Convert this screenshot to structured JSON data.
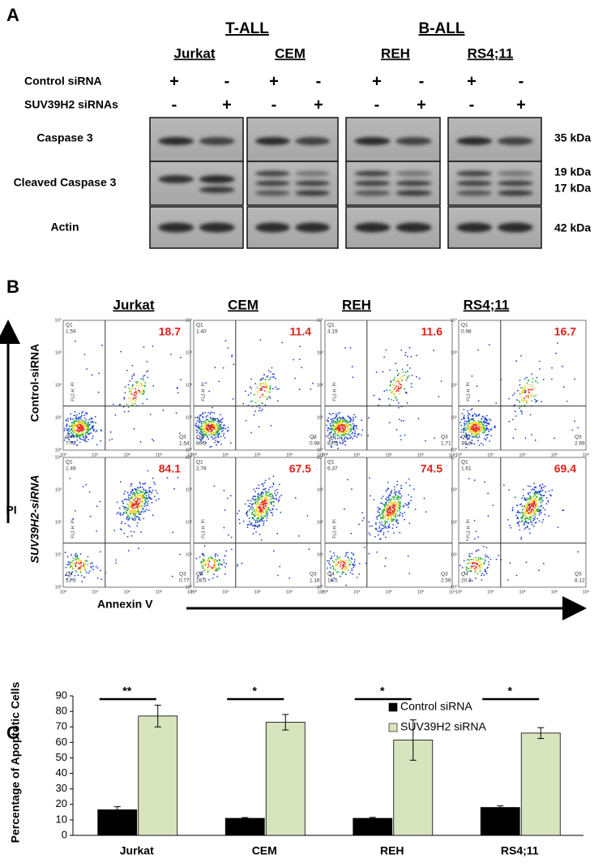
{
  "panel_a": {
    "label": "A",
    "groups": [
      {
        "name": "T-ALL",
        "lines": [
          "Jurkat",
          "CEM"
        ]
      },
      {
        "name": "B-ALL",
        "lines": [
          "REH",
          "RS4;11"
        ]
      }
    ],
    "treatments": [
      {
        "label": "Control siRNA",
        "signs": [
          "+",
          "-",
          "+",
          "-",
          "+",
          "-",
          "+",
          "-"
        ]
      },
      {
        "label": "SUV39H2 siRNAs",
        "signs": [
          "-",
          "+",
          "-",
          "+",
          "-",
          "+",
          "-",
          "+"
        ]
      }
    ],
    "blots": [
      {
        "label": "Caspase 3",
        "sizes": [
          "35 kDa"
        ]
      },
      {
        "label": "Cleaved Caspase 3",
        "sizes": [
          "19 kDa",
          "17 kDa"
        ]
      },
      {
        "label": "Actin",
        "sizes": [
          "42 kDa"
        ]
      }
    ]
  },
  "panel_b": {
    "label": "B",
    "cell_lines": [
      "Jurkat",
      "CEM",
      "REH",
      "RS4;11"
    ],
    "y_axis": "PI",
    "x_axis": "Annexin V",
    "channel": "FL2-H: PI",
    "quadrant_names": [
      "Q1",
      "Q3",
      "Q4"
    ],
    "log_ticks": [
      "10⁰",
      "10¹",
      "10²",
      "10³",
      "10⁴"
    ],
    "conditions": [
      {
        "label": "Control-siRNA",
        "plots": [
          {
            "q2": "18.7",
            "q1": "1.59",
            "q3": "1.54",
            "q4": "77.8"
          },
          {
            "q2": "11.4",
            "q1": "1.40",
            "q3": "0.98",
            "q4": "86.2"
          },
          {
            "q2": "11.6",
            "q1": "3.19",
            "q3": "1.71",
            "q4": "83.5"
          },
          {
            "q2": "16.7",
            "q1": "0.98",
            "q3": "2.69",
            "q4": "79.6"
          }
        ]
      },
      {
        "label": "SUV39H2-siRNA",
        "plots": [
          {
            "q2": "84.1",
            "q1": "1.49",
            "q3": "0.77",
            "q4": "13.6"
          },
          {
            "q2": "67.5",
            "q1": "2.78",
            "q3": "1.16",
            "q4": "28.5"
          },
          {
            "q2": "74.5",
            "q1": "6.37",
            "q3": "2.56",
            "q4": "16.5"
          },
          {
            "q2": "69.4",
            "q1": "1.61",
            "q3": "8.12",
            "q4": "20.9"
          }
        ]
      }
    ]
  },
  "panel_c": {
    "label": "C"
  },
  "chart_data": {
    "type": "bar",
    "y_label": "Percentage of Apoptotic Cells",
    "categories": [
      "Jurkat",
      "CEM",
      "REH",
      "RS4;11"
    ],
    "series": [
      {
        "name": "Control siRNA",
        "color": "#000000",
        "values": [
          16.5,
          11,
          11,
          18
        ],
        "errors": [
          2,
          0.5,
          0.6,
          1
        ]
      },
      {
        "name": "SUV39H2 siRNA",
        "color": "#d7e4bd",
        "values": [
          77,
          73,
          61.5,
          66
        ],
        "errors": [
          7,
          5,
          13,
          3.5
        ]
      }
    ],
    "significance": [
      "**",
      "*",
      "*",
      "*"
    ],
    "ylim": [
      0,
      90
    ],
    "yticks": [
      0,
      10,
      20,
      30,
      40,
      50,
      60,
      70,
      80,
      90
    ],
    "legend": "top-right"
  }
}
